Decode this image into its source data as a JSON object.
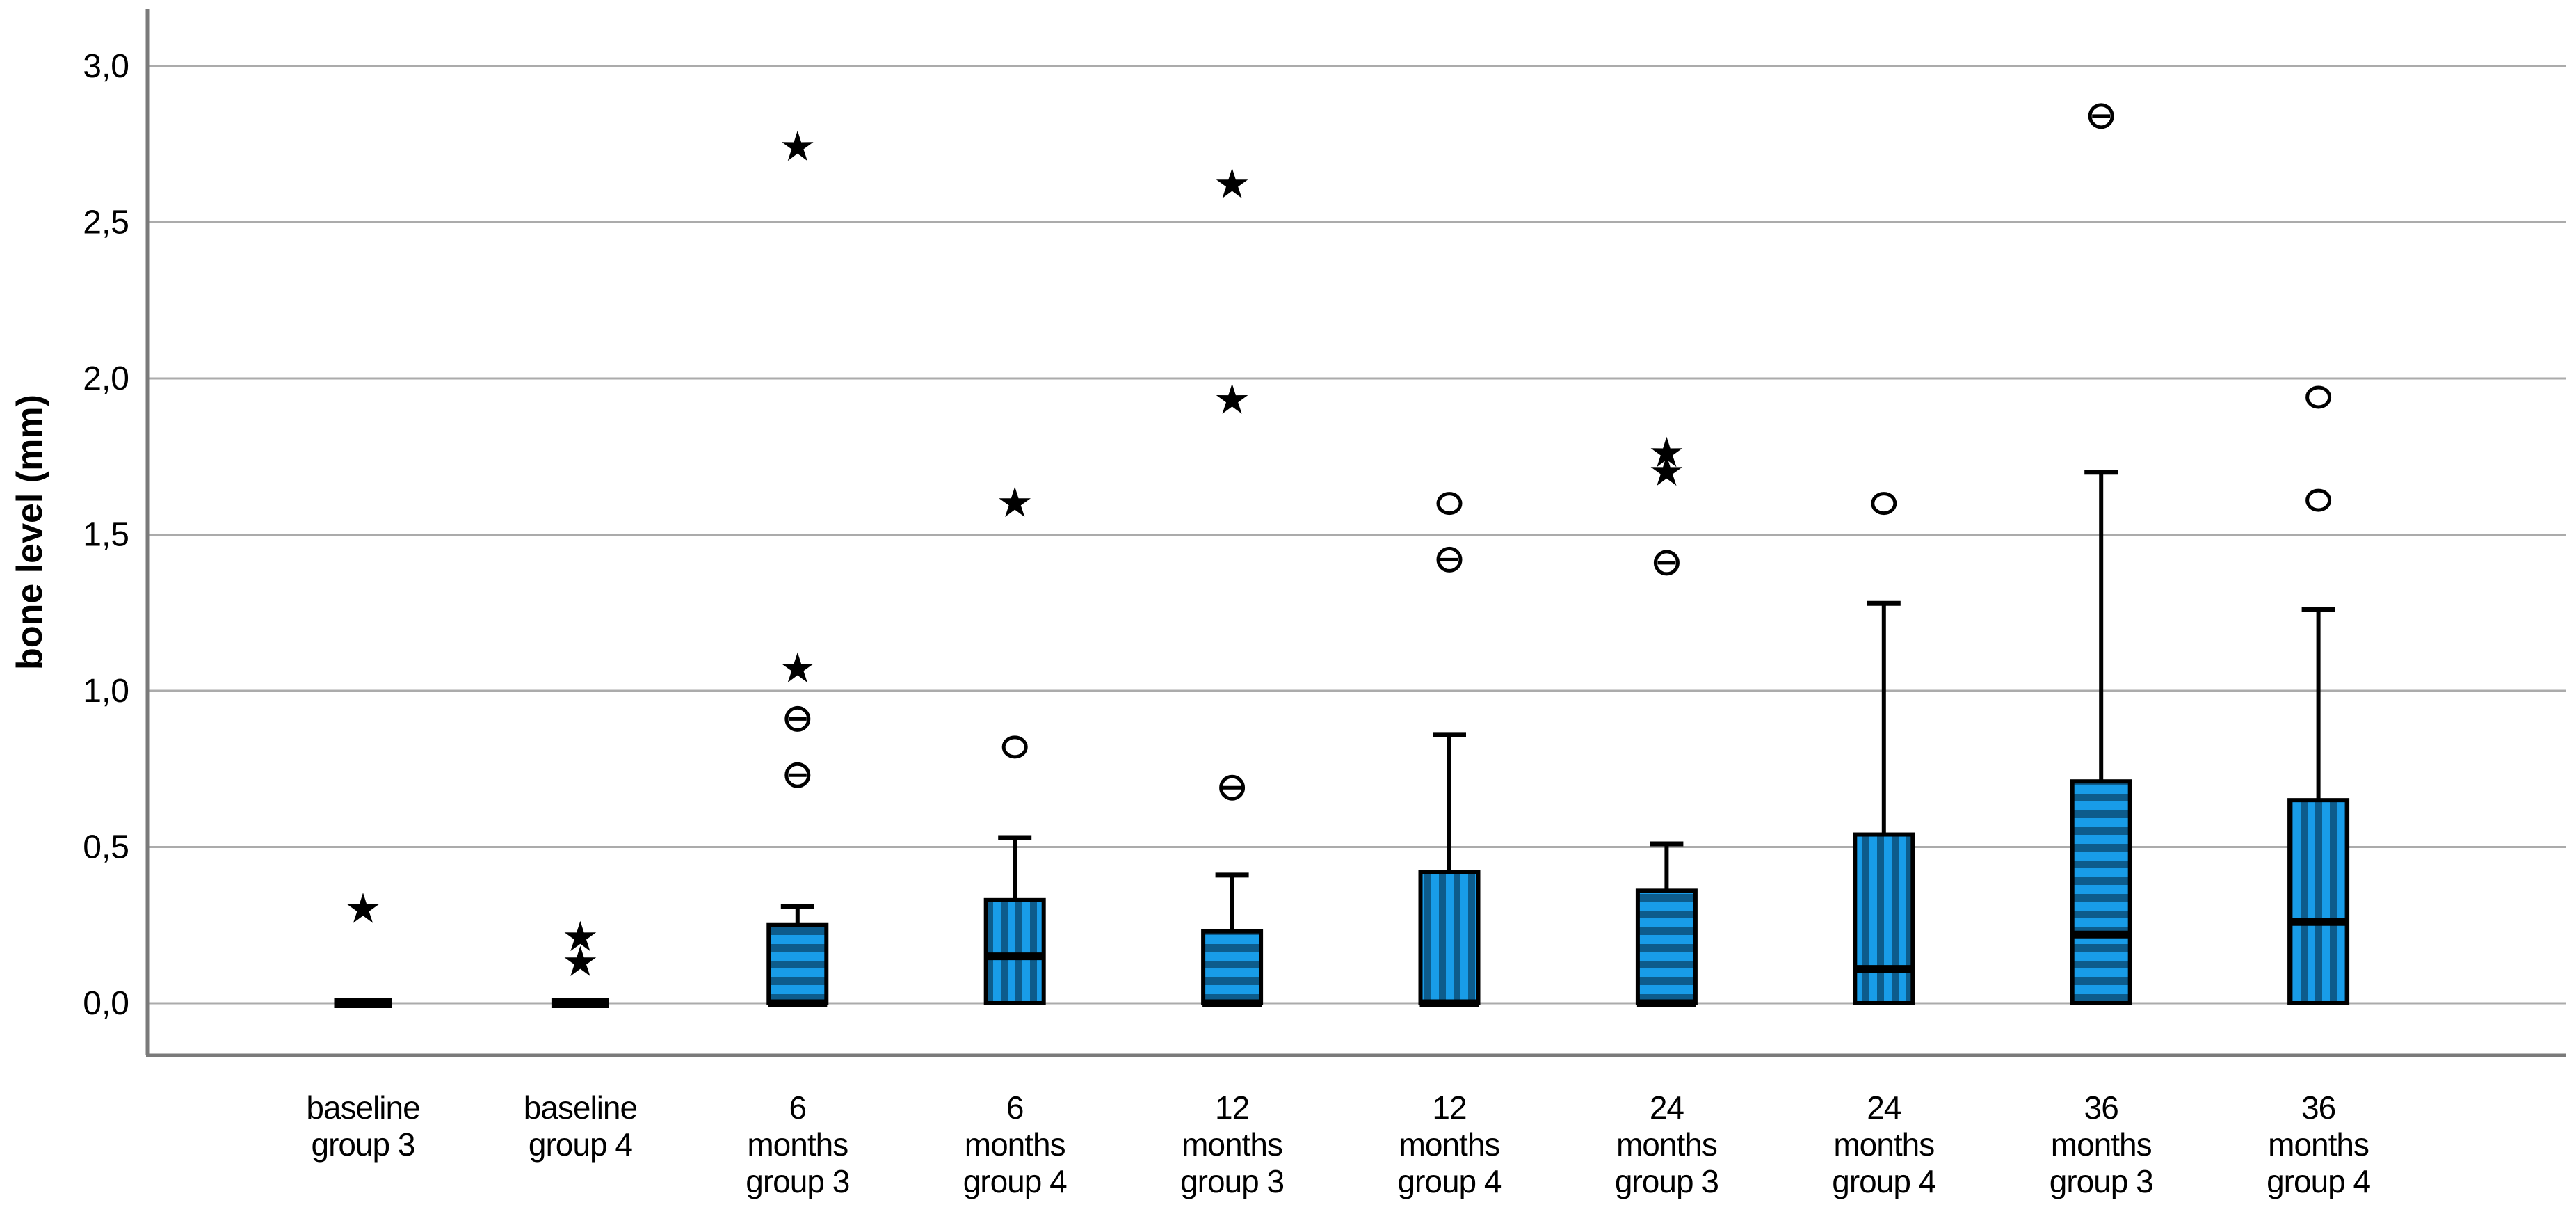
{
  "figure": {
    "kind": "SPSS-style clustered boxplot",
    "background": "#ffffff"
  },
  "chart_data": {
    "type": "boxplot",
    "title": "",
    "ylabel": "bone level (mm)",
    "xlabel": "",
    "decimal_separator": ",",
    "grid": "horizontal",
    "ylim": [
      -0.17,
      3.18
    ],
    "y_ticks": [
      {
        "value": 0.0,
        "label": "0,0"
      },
      {
        "value": 0.5,
        "label": "0,5"
      },
      {
        "value": 1.0,
        "label": "1,0"
      },
      {
        "value": 1.5,
        "label": "1,5"
      },
      {
        "value": 2.0,
        "label": "2,0"
      },
      {
        "value": 2.5,
        "label": "2,5"
      },
      {
        "value": 3.0,
        "label": "3,0"
      }
    ],
    "colors": {
      "box_fill_light": "#189CE8",
      "box_stripe_dark": "#0D5C8C",
      "box_border": "#000000",
      "median_line": "#000000",
      "whisker": "#000000",
      "outlier_marker": "#000000",
      "gridline": "#ABABAB",
      "axis_line": "#7A7A7A",
      "tick_text": "#000000"
    },
    "marker_meanings": {
      "circle": "outlier",
      "double-circle": "two overlapping outliers",
      "star": "extreme value"
    },
    "categories": [
      {
        "label": "baseline group 3",
        "label_lines": [
          "baseline",
          "group 3"
        ],
        "group": "group 3",
        "pattern": "horizontal-stripes",
        "box": {
          "q1": 0.0,
          "median": 0.0,
          "q3": 0.0,
          "whisker_high": null
        },
        "outliers": [
          {
            "type": "star",
            "value": 0.3
          }
        ]
      },
      {
        "label": "baseline group 4",
        "label_lines": [
          "baseline",
          "group 4"
        ],
        "group": "group 4",
        "pattern": "vertical-stripes",
        "box": {
          "q1": 0.0,
          "median": 0.0,
          "q3": 0.0,
          "whisker_high": null
        },
        "outliers": [
          {
            "type": "star",
            "value": 0.21
          },
          {
            "type": "star",
            "value": 0.13
          }
        ]
      },
      {
        "label": "6 months group 3",
        "label_lines": [
          "6",
          "months",
          "group 3"
        ],
        "group": "group 3",
        "pattern": "horizontal-stripes",
        "box": {
          "q1": 0.0,
          "median": 0.0,
          "q3": 0.25,
          "whisker_high": 0.31
        },
        "outliers": [
          {
            "type": "double-circle",
            "value": 0.73
          },
          {
            "type": "double-circle",
            "value": 0.91
          },
          {
            "type": "star",
            "value": 1.07
          },
          {
            "type": "star",
            "value": 2.74
          }
        ]
      },
      {
        "label": "6 months group 4",
        "label_lines": [
          "6",
          "months",
          "group 4"
        ],
        "group": "group 4",
        "pattern": "vertical-stripes",
        "box": {
          "q1": 0.0,
          "median": 0.15,
          "q3": 0.33,
          "whisker_high": 0.53
        },
        "outliers": [
          {
            "type": "circle",
            "value": 0.82
          },
          {
            "type": "star",
            "value": 1.6
          }
        ]
      },
      {
        "label": "12 months group 3",
        "label_lines": [
          "12",
          "months",
          "group 3"
        ],
        "group": "group 3",
        "pattern": "horizontal-stripes",
        "box": {
          "q1": 0.0,
          "median": 0.0,
          "q3": 0.23,
          "whisker_high": 0.41
        },
        "outliers": [
          {
            "type": "double-circle",
            "value": 0.69
          },
          {
            "type": "star",
            "value": 1.93
          },
          {
            "type": "star",
            "value": 2.62
          }
        ]
      },
      {
        "label": "12 months group 4",
        "label_lines": [
          "12",
          "months",
          "group 4"
        ],
        "group": "group 4",
        "pattern": "vertical-stripes",
        "box": {
          "q1": 0.0,
          "median": 0.0,
          "q3": 0.42,
          "whisker_high": 0.86
        },
        "outliers": [
          {
            "type": "double-circle",
            "value": 1.42
          },
          {
            "type": "circle",
            "value": 1.6
          }
        ]
      },
      {
        "label": "24 months group 3",
        "label_lines": [
          "24",
          "months",
          "group 3"
        ],
        "group": "group 3",
        "pattern": "horizontal-stripes",
        "box": {
          "q1": 0.0,
          "median": 0.0,
          "q3": 0.36,
          "whisker_high": 0.51
        },
        "outliers": [
          {
            "type": "double-circle",
            "value": 1.41
          },
          {
            "type": "star",
            "value": 1.7
          },
          {
            "type": "star",
            "value": 1.76
          }
        ]
      },
      {
        "label": "24 months group 4",
        "label_lines": [
          "24",
          "months",
          "group 4"
        ],
        "group": "group 4",
        "pattern": "vertical-stripes",
        "box": {
          "q1": 0.0,
          "median": 0.11,
          "q3": 0.54,
          "whisker_high": 1.28
        },
        "outliers": [
          {
            "type": "circle",
            "value": 1.6
          }
        ]
      },
      {
        "label": "36 months group 3",
        "label_lines": [
          "36",
          "months",
          "group 3"
        ],
        "group": "group 3",
        "pattern": "horizontal-stripes",
        "box": {
          "q1": 0.0,
          "median": 0.22,
          "q3": 0.71,
          "whisker_high": 1.7
        },
        "outliers": [
          {
            "type": "double-circle",
            "value": 2.84
          }
        ]
      },
      {
        "label": "36 months group 4",
        "label_lines": [
          "36",
          "months",
          "group 4"
        ],
        "group": "group 4",
        "pattern": "vertical-stripes",
        "box": {
          "q1": 0.0,
          "median": 0.26,
          "q3": 0.65,
          "whisker_high": 1.26
        },
        "outliers": [
          {
            "type": "circle",
            "value": 1.61
          },
          {
            "type": "circle",
            "value": 1.94
          }
        ]
      }
    ]
  }
}
